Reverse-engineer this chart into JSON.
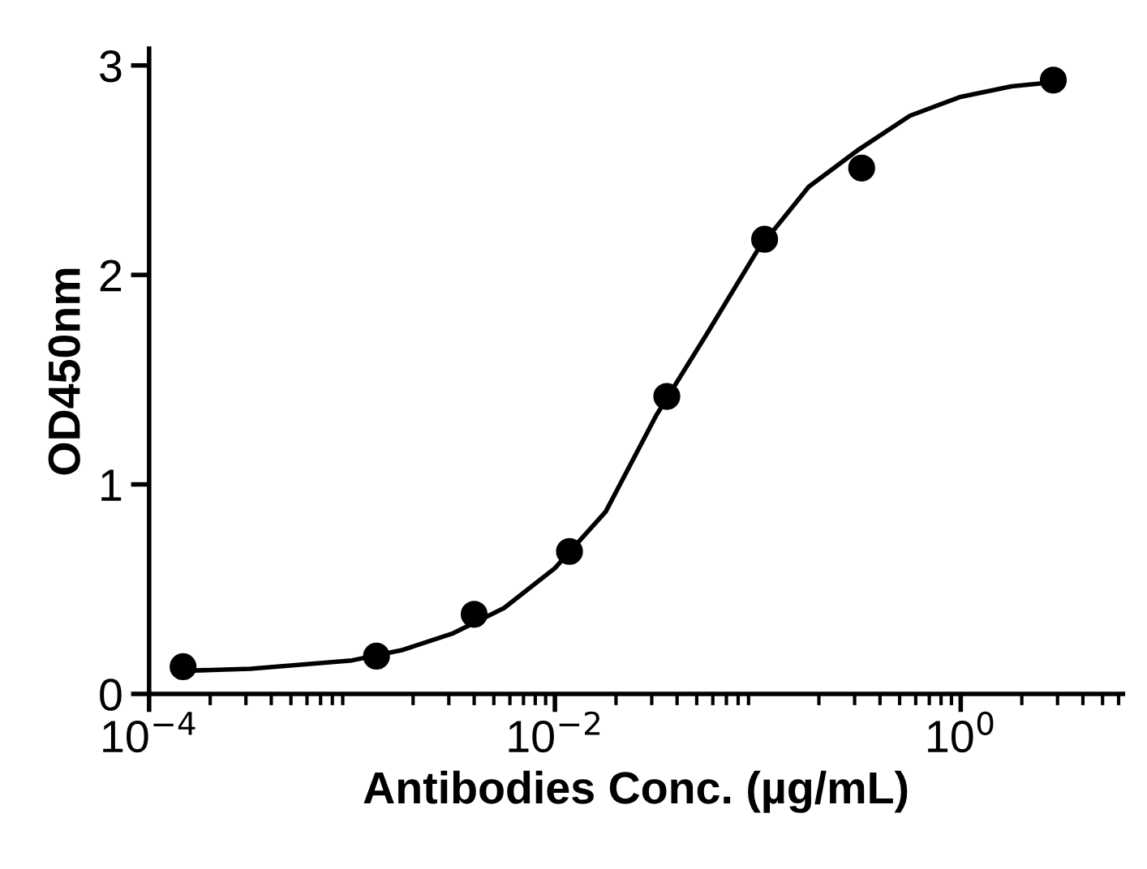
{
  "chart_data": {
    "type": "scatter",
    "xlabel": "Antibodies Conc. (µg/mL)",
    "ylabel": "OD450nm",
    "log": "x",
    "grid": false,
    "legend": false,
    "xlim": [
      0.0001,
      6.3
    ],
    "ylim": [
      0,
      3.08
    ],
    "xticks": [
      {
        "value": 0.0001,
        "label": "10$^{−4}$"
      },
      {
        "value": 0.01,
        "label": "10$^{−2}$"
      },
      {
        "value": 1,
        "label": "10$^{0}$"
      }
    ],
    "yticks": [
      0,
      1,
      2,
      3
    ],
    "series": [
      {
        "color": "#000000",
        "marker": "circle",
        "x": [
          0.000147,
          0.00132,
          0.004,
          0.0118,
          0.0356,
          0.108,
          0.325,
          2.86
        ],
        "values": [
          0.13,
          0.18,
          0.38,
          0.68,
          1.42,
          2.17,
          2.51,
          2.93
        ]
      },
      {
        "type": "line",
        "color": "#000000",
        "marker": "none",
        "line_style": "solid",
        "x": [
          0.000148,
          0.000316,
          0.001,
          0.00178,
          0.00316,
          0.00562,
          0.01,
          0.0178,
          0.0316,
          0.0562,
          0.1,
          0.178,
          0.316,
          0.562,
          1,
          1.78,
          2.88
        ],
        "values": [
          0.11,
          0.12,
          0.16,
          0.21,
          0.29,
          0.41,
          0.6,
          0.87,
          1.33,
          1.72,
          2.12,
          2.42,
          2.6,
          2.76,
          2.85,
          2.9,
          2.92
        ]
      }
    ]
  }
}
